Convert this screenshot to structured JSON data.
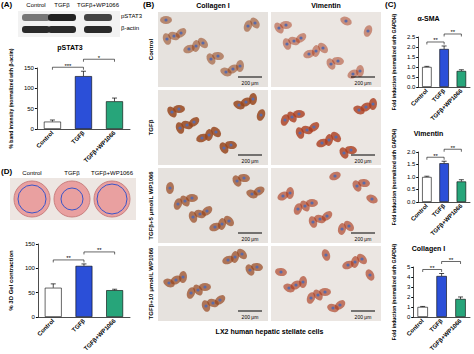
{
  "chart_data": [
    {
      "type": "bar",
      "title": "pSTAT3",
      "y_label": "% band intensity (normalized with β-actin)",
      "categories": [
        "Control",
        "TGFβ",
        "TGFβ+WP1066"
      ],
      "values": [
        18,
        130,
        68
      ],
      "errors": [
        4,
        12,
        8
      ],
      "colors": [
        "#ffffff",
        "#2b4fd8",
        "#27a57a"
      ],
      "ylim": [
        0,
        150
      ],
      "yticks": [
        0,
        50,
        100,
        150
      ],
      "grid": false,
      "annotations": [
        {
          "from": 0,
          "to": 1,
          "label": "***"
        },
        {
          "from": 1,
          "to": 2,
          "label": "*"
        }
      ]
    },
    {
      "type": "bar",
      "title": "α-SMA",
      "y_label": "Fold induction (normalized with GAPDH)",
      "categories": [
        "Control",
        "TGFβ",
        "TGFβ+WP1066"
      ],
      "values": [
        1.0,
        1.9,
        0.8
      ],
      "errors": [
        0.03,
        0.15,
        0.06
      ],
      "colors": [
        "#ffffff",
        "#2b4fd8",
        "#27a57a"
      ],
      "ylim": [
        0,
        2.5
      ],
      "yticks": [
        {
          "value": 0,
          "label": "0.0"
        },
        0.5,
        {
          "value": 1,
          "label": "1.0"
        },
        1.5,
        {
          "value": 2,
          "label": "2.0"
        },
        2.5
      ],
      "grid": false,
      "annotations": [
        {
          "from": 0,
          "to": 1,
          "label": "**"
        },
        {
          "from": 1,
          "to": 2,
          "label": "**"
        }
      ]
    },
    {
      "type": "bar",
      "title": "Vimentin",
      "y_label": "Fold induction (normalized with GAPDH)",
      "categories": [
        "Control",
        "TGFβ",
        "TGFβ+WP1066"
      ],
      "values": [
        1.0,
        1.55,
        0.82
      ],
      "errors": [
        0.03,
        0.08,
        0.07
      ],
      "colors": [
        "#ffffff",
        "#2b4fd8",
        "#27a57a"
      ],
      "ylim": [
        0,
        2
      ],
      "yticks": [
        {
          "value": 0,
          "label": "0.0"
        },
        0.5,
        {
          "value": 1,
          "label": "1.0"
        },
        1.5,
        {
          "value": 2,
          "label": "2.0"
        }
      ],
      "grid": false,
      "annotations": [
        {
          "from": 0,
          "to": 1,
          "label": "**"
        },
        {
          "from": 1,
          "to": 2,
          "label": "**"
        }
      ]
    },
    {
      "type": "bar",
      "title": "Collagen I",
      "y_label": "Fold induction (normalized with GAPDH)",
      "categories": [
        "Control",
        "TGFβ",
        "TGFβ+WP1066"
      ],
      "values": [
        1.0,
        4.1,
        1.8
      ],
      "errors": [
        0.05,
        0.25,
        0.2
      ],
      "colors": [
        "#ffffff",
        "#2b4fd8",
        "#27a57a"
      ],
      "ylim": [
        0,
        5
      ],
      "yticks": [
        0,
        1,
        2,
        3,
        4,
        5
      ],
      "grid": false,
      "annotations": [
        {
          "from": 0,
          "to": 1,
          "label": "**"
        },
        {
          "from": 1,
          "to": 2,
          "label": "**"
        }
      ]
    },
    {
      "type": "bar",
      "y_label": "% 3D Gel contraction",
      "categories": [
        "Control",
        "TGFβ",
        "TGFβ+WP1066"
      ],
      "values": [
        60,
        105,
        55
      ],
      "errors": [
        8,
        4,
        2
      ],
      "colors": [
        "#ffffff",
        "#2b4fd8",
        "#27a57a"
      ],
      "ylim": [
        0,
        150
      ],
      "yticks": [
        0,
        50,
        100,
        150
      ],
      "grid": false,
      "annotations": [
        {
          "from": 0,
          "to": 1,
          "label": "**"
        },
        {
          "from": 1,
          "to": 2,
          "label": "**"
        }
      ]
    }
  ],
  "figure": {
    "panel_labels": [
      "(A)",
      "(B)",
      "(C)",
      "(D)"
    ],
    "blot": {
      "columns": [
        "Control",
        "TGFβ",
        "TGFβ+WP1066"
      ],
      "rows": [
        "pSTAT3",
        "β-actin"
      ]
    },
    "micrographs": {
      "columns": [
        "Collagen I",
        "Vimentin"
      ],
      "rows": [
        "Control",
        "TGFβ",
        "TGFβ+5 μmol/L WP1066",
        "TGFβ+10 μmol/L WP1066"
      ],
      "scale_bar": "200 μm",
      "caption": "LX2 human hepatic stellate cells"
    },
    "gel": {
      "columns": [
        "Control",
        "TGFβ",
        "TGFβ+WP1066"
      ]
    }
  }
}
